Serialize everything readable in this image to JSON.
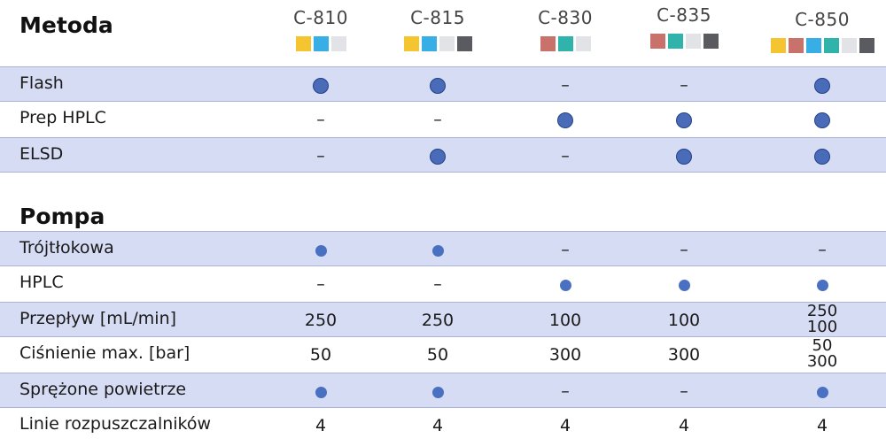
{
  "models": [
    {
      "name": "C-810",
      "colors": [
        "#f4c531",
        "#38aee6",
        "#e2e3e7"
      ]
    },
    {
      "name": "C-815",
      "colors": [
        "#f4c531",
        "#38aee6",
        "#e2e3e7",
        "#5a5b60"
      ]
    },
    {
      "name": "C-830",
      "colors": [
        "#c9716b",
        "#2fb3aa",
        "#e2e3e7"
      ]
    },
    {
      "name": "C-835",
      "colors": [
        "#c9716b",
        "#2fb3aa",
        "#e2e3e7",
        "#5a5b60"
      ]
    },
    {
      "name": "C-850",
      "colors": [
        "#f4c531",
        "#c9716b",
        "#38aee6",
        "#2fb3aa",
        "#e2e3e7",
        "#5a5b60"
      ]
    }
  ],
  "sections": {
    "metoda": "Metoda",
    "pompa": "Pompa"
  },
  "rows": [
    {
      "label": "Flash",
      "cells": [
        "dot",
        "dot",
        "–",
        "–",
        "dot"
      ]
    },
    {
      "label": "Prep HPLC",
      "cells": [
        "–",
        "–",
        "dot",
        "dot",
        "dot"
      ]
    },
    {
      "label": "ELSD",
      "cells": [
        "–",
        "dot",
        "–",
        "dot",
        "dot"
      ]
    },
    {
      "label": "Trójtłokowa",
      "cells": [
        "dot",
        "dot",
        "–",
        "–",
        "–"
      ]
    },
    {
      "label": "HPLC",
      "cells": [
        "–",
        "–",
        "dot",
        "dot",
        "dot"
      ]
    },
    {
      "label": "Przepływ [mL/min]",
      "cells": [
        "250",
        "250",
        "100",
        "100",
        "250|100"
      ]
    },
    {
      "label": "Ciśnienie max. [bar]",
      "cells": [
        "50",
        "50",
        "300",
        "300",
        "50|300"
      ]
    },
    {
      "label": "Sprężone powietrze",
      "cells": [
        "dot",
        "dot",
        "–",
        "–",
        "dot"
      ]
    },
    {
      "label": "Linie rozpuszczalników",
      "cells": [
        "4",
        "4",
        "4",
        "4",
        "4"
      ]
    }
  ]
}
